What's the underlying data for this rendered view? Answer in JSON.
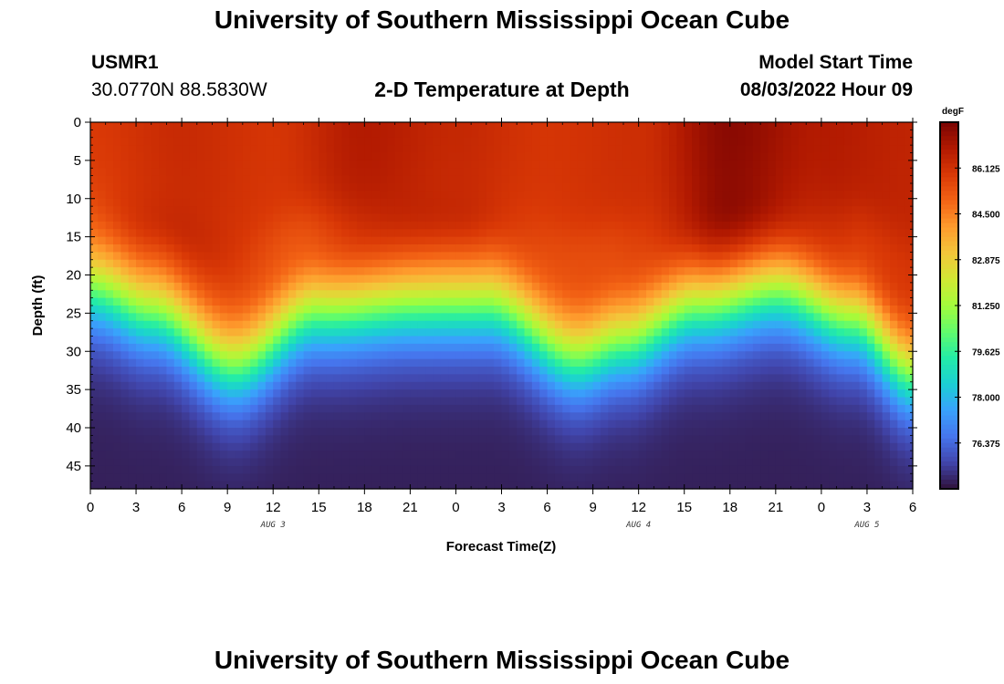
{
  "header": {
    "title": "University of Southern Mississippi Ocean Cube",
    "station_id": "USMR1",
    "coordinates": "30.0770N  88.5830W",
    "subtitle": "2-D Temperature at Depth",
    "model_start_label": "Model Start Time",
    "model_start_value": "08/03/2022 Hour 09"
  },
  "footer": {
    "title": "University of Southern Mississippi Ocean Cube"
  },
  "colors": {
    "colormap": [
      "#30123b",
      "#4145ab",
      "#4675ed",
      "#39a2fc",
      "#1bcfd4",
      "#24eca6",
      "#61fc6c",
      "#a4fc3b",
      "#d1e834",
      "#f3c63a",
      "#fe9b2d",
      "#f36315",
      "#d93806",
      "#b11901",
      "#7a0402"
    ]
  },
  "chart_data": {
    "type": "heatmap",
    "title": "2-D Temperature at Depth",
    "xlabel": "Forecast Time(Z)",
    "ylabel": "Depth (ft)",
    "xlim": [
      0,
      54
    ],
    "ylim": [
      48,
      0
    ],
    "x_ticks": [
      {
        "hour": 0,
        "label": "0"
      },
      {
        "hour": 3,
        "label": "3"
      },
      {
        "hour": 6,
        "label": "6"
      },
      {
        "hour": 9,
        "label": "9"
      },
      {
        "hour": 12,
        "label": "12"
      },
      {
        "hour": 15,
        "label": "15"
      },
      {
        "hour": 18,
        "label": "18"
      },
      {
        "hour": 21,
        "label": "21"
      },
      {
        "hour": 24,
        "label": "0"
      },
      {
        "hour": 27,
        "label": "3"
      },
      {
        "hour": 30,
        "label": "6"
      },
      {
        "hour": 33,
        "label": "9"
      },
      {
        "hour": 36,
        "label": "12"
      },
      {
        "hour": 39,
        "label": "15"
      },
      {
        "hour": 42,
        "label": "18"
      },
      {
        "hour": 45,
        "label": "21"
      },
      {
        "hour": 48,
        "label": "0"
      },
      {
        "hour": 51,
        "label": "3"
      },
      {
        "hour": 54,
        "label": "6"
      }
    ],
    "day_labels": [
      {
        "hour": 12,
        "label": "AUG 3"
      },
      {
        "hour": 36,
        "label": "AUG 4"
      },
      {
        "hour": 51,
        "label": "AUG 5"
      }
    ],
    "y_ticks": [
      0,
      5,
      10,
      15,
      20,
      25,
      30,
      35,
      40,
      45
    ],
    "colorbar": {
      "unit": "degF",
      "min": 74.75,
      "max": 87.75,
      "labels": [
        "86.125",
        "84.500",
        "82.875",
        "81.250",
        "79.625",
        "78.000",
        "76.375"
      ]
    },
    "thermocline_depth_ft": [
      {
        "hour": 0,
        "depth": 22
      },
      {
        "hour": 4,
        "depth": 25
      },
      {
        "hour": 9.5,
        "depth": 32
      },
      {
        "hour": 15,
        "depth": 25
      },
      {
        "hour": 21,
        "depth": 24
      },
      {
        "hour": 26,
        "depth": 24
      },
      {
        "hour": 32,
        "depth": 31
      },
      {
        "hour": 35,
        "depth": 29
      },
      {
        "hour": 40,
        "depth": 24
      },
      {
        "hour": 45,
        "depth": 22
      },
      {
        "hour": 50,
        "depth": 26
      },
      {
        "hour": 54,
        "depth": 33
      }
    ],
    "surface_temperature_degF": [
      {
        "hour": 0,
        "value": 85.9
      },
      {
        "hour": 6,
        "value": 86.3
      },
      {
        "hour": 12,
        "value": 86.0
      },
      {
        "hour": 18,
        "value": 86.8
      },
      {
        "hour": 24,
        "value": 86.4
      },
      {
        "hour": 30,
        "value": 86.0
      },
      {
        "hour": 36,
        "value": 86.2
      },
      {
        "hour": 42,
        "value": 87.5
      },
      {
        "hour": 48,
        "value": 86.8
      },
      {
        "hour": 54,
        "value": 86.5
      }
    ],
    "bottom_temperature_degF": 75.0
  }
}
